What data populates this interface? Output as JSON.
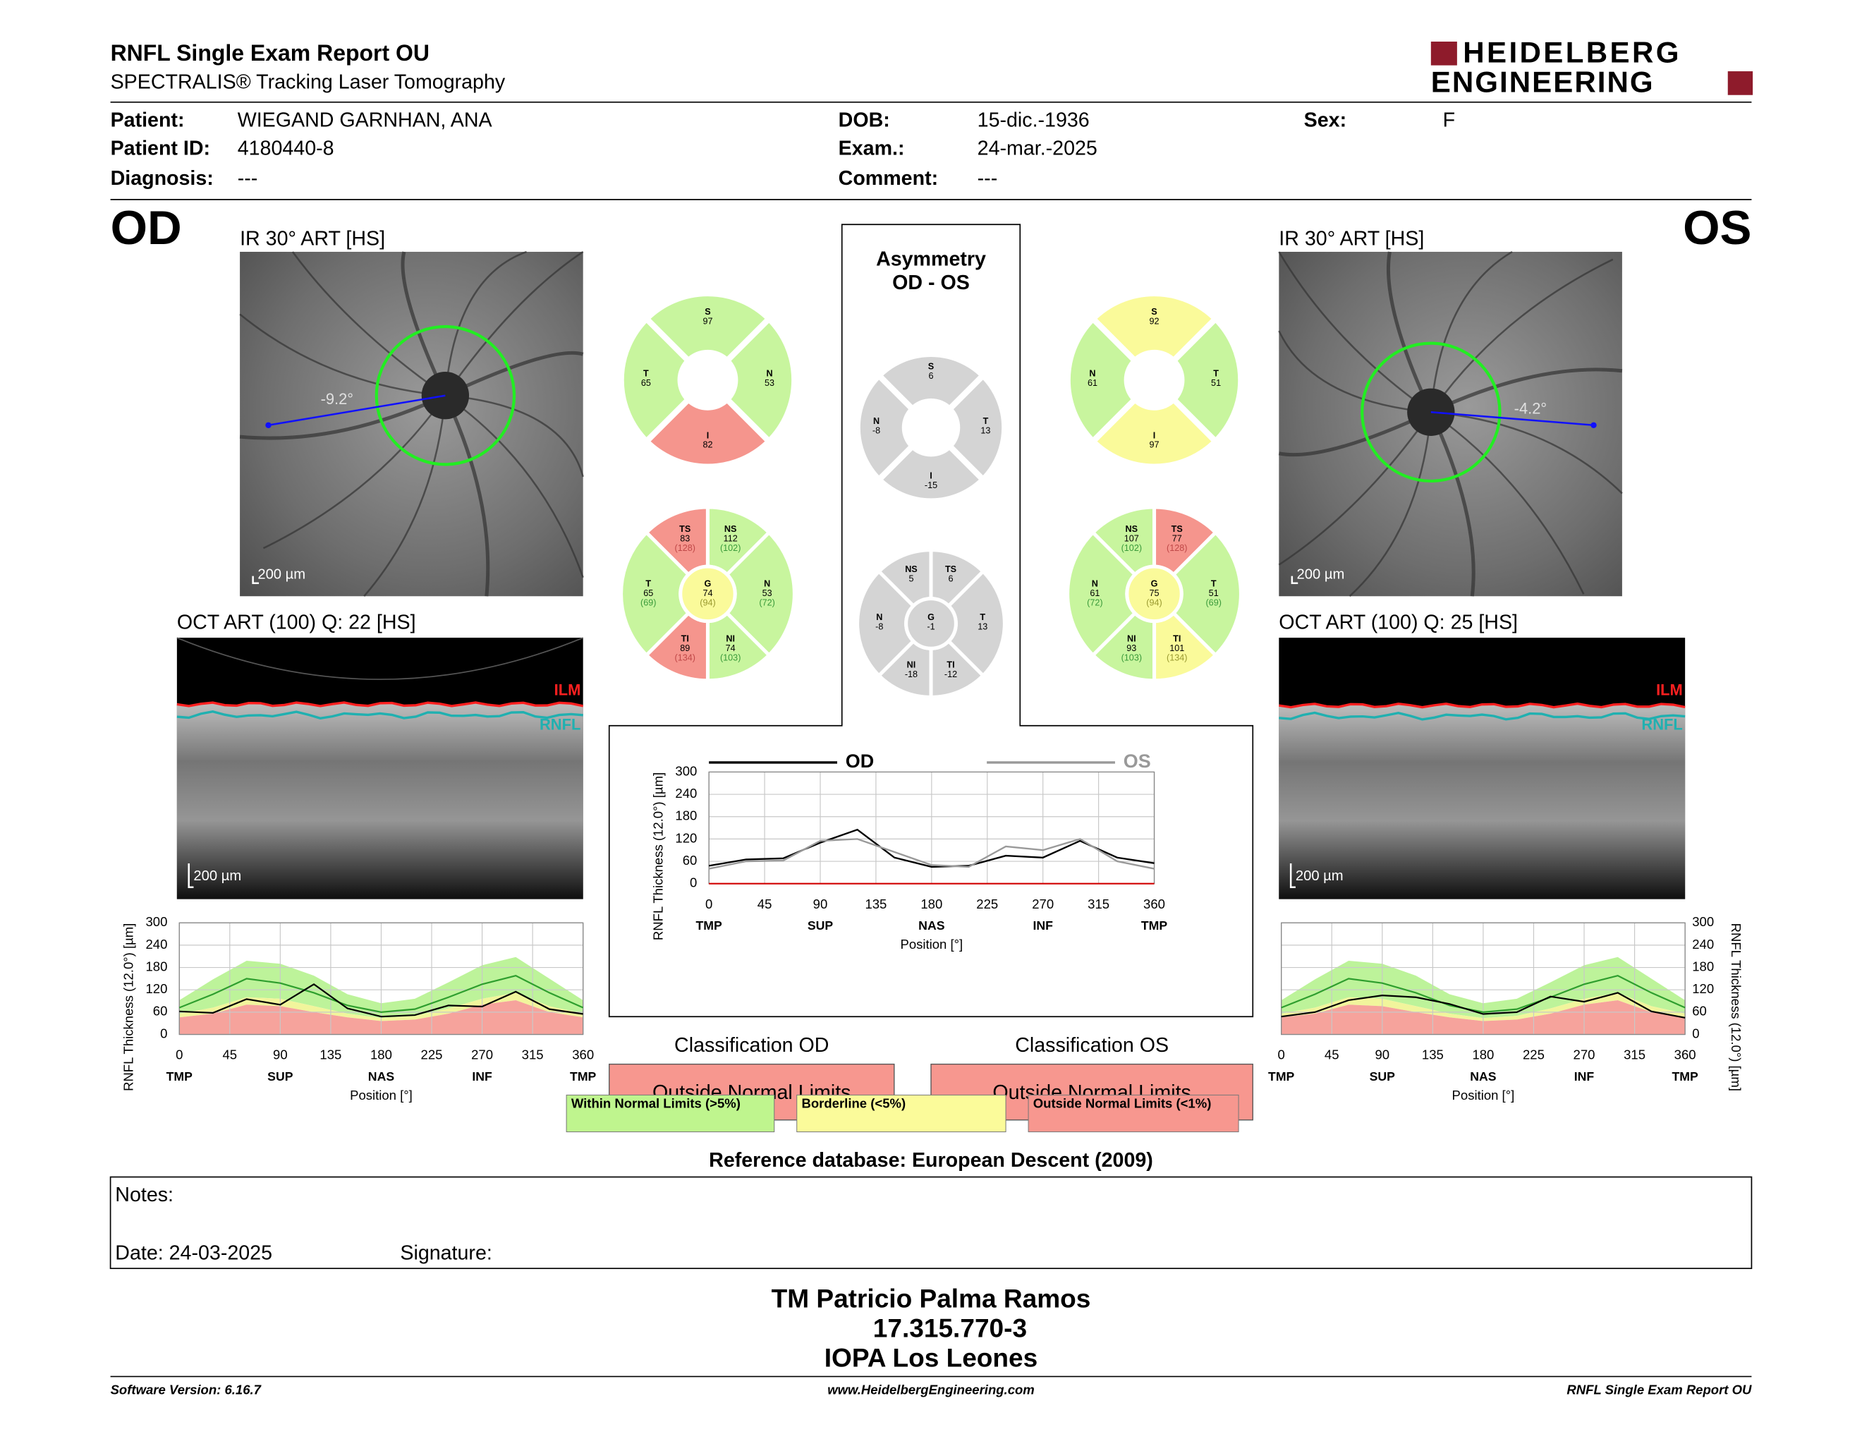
{
  "header": {
    "title": "RNFL Single Exam Report OU",
    "subtitle": "SPECTRALIS® Tracking Laser Tomography",
    "logo": [
      "HEIDELBERG",
      "ENGINEERING"
    ]
  },
  "patient": {
    "fields": [
      {
        "label": "Patient:",
        "value": "WIEGAND GARNHAN, ANA"
      },
      {
        "label": "Patient ID:",
        "value": "4180440-8"
      },
      {
        "label": "Diagnosis:",
        "value": "---"
      },
      {
        "label": "DOB:",
        "value": "15-dic.-1936"
      },
      {
        "label": "Exam.:",
        "value": "24-mar.-2025"
      },
      {
        "label": "Comment:",
        "value": "---"
      },
      {
        "label": "Sex:",
        "value": "F"
      }
    ]
  },
  "eyes": [
    {
      "eye": "OD",
      "ir_title": "IR 30° ART [HS]",
      "ir_angle": "-9.2°",
      "ir_scale": "200 µm",
      "oct_title": "OCT ART (100) Q: 22 [HS]",
      "oct_layers": [
        "ILM",
        "RNFL"
      ],
      "oct_scale": "200 µm",
      "quadrants": [
        {
          "label": "S",
          "value": 97,
          "color": "#c8f59e"
        },
        {
          "label": "N",
          "value": 53,
          "color": "#c8f59e"
        },
        {
          "label": "I",
          "value": 82,
          "color": "#f5958d"
        },
        {
          "label": "T",
          "value": 65,
          "color": "#c8f59e"
        }
      ],
      "sectors": [
        {
          "label": "TS",
          "value": 83,
          "norm": "(128)",
          "color": "#f5958d"
        },
        {
          "label": "NS",
          "value": 112,
          "norm": "(102)",
          "color": "#c8f59e"
        },
        {
          "label": "N",
          "value": 53,
          "norm": "(72)",
          "color": "#c8f59e"
        },
        {
          "label": "NI",
          "value": 74,
          "norm": "(103)",
          "color": "#c8f59e"
        },
        {
          "label": "TI",
          "value": 89,
          "norm": "(134)",
          "color": "#f5958d"
        },
        {
          "label": "T",
          "value": 65,
          "norm": "(69)",
          "color": "#c8f59e"
        },
        {
          "label": "G",
          "value": 74,
          "norm": "(94)",
          "color": "#fafa9a"
        }
      ],
      "classification_title": "Classification OD",
      "classification": "Outside Normal Limits",
      "classification_color": "#f7978f",
      "profile": {
        "type": "line",
        "x": [
          0,
          30,
          60,
          90,
          120,
          150,
          180,
          210,
          240,
          270,
          300,
          330,
          360
        ],
        "values": [
          62,
          58,
          95,
          80,
          135,
          70,
          48,
          52,
          78,
          75,
          115,
          68,
          55
        ],
        "color": "#000000",
        "mean": [
          72,
          108,
          150,
          138,
          112,
          78,
          60,
          68,
          100,
          135,
          158,
          112,
          72
        ],
        "mean_color": "#2e9e2e",
        "green_band_top": [
          92,
          148,
          198,
          190,
          158,
          108,
          84,
          96,
          140,
          186,
          208,
          150,
          92
        ],
        "yellow_band_top": [
          56,
          72,
          100,
          96,
          76,
          56,
          44,
          50,
          70,
          96,
          112,
          76,
          56
        ],
        "red_band_top": [
          46,
          56,
          80,
          76,
          60,
          46,
          36,
          40,
          56,
          80,
          92,
          60,
          46
        ],
        "band_colors": {
          "green": "#bdf39a",
          "yellow": "#f1f59c",
          "red": "#f6a39c"
        },
        "xlim": [
          0,
          360
        ],
        "xticks": [
          0,
          45,
          90,
          135,
          180,
          225,
          270,
          315,
          360
        ],
        "xcategories": [
          {
            "value": 0,
            "label": "TMP"
          },
          {
            "value": 90,
            "label": "SUP"
          },
          {
            "value": 180,
            "label": "NAS"
          },
          {
            "value": 270,
            "label": "INF"
          },
          {
            "value": 360,
            "label": "TMP"
          }
        ],
        "ylim": [
          0,
          300
        ],
        "yticks": [
          0,
          60,
          120,
          180,
          240,
          300
        ],
        "xlabel": "Position [°]",
        "ylabel": "RNFL Thickness (12.0°) [µm]",
        "grid": true
      }
    },
    {
      "eye": "OS",
      "ir_title": "IR 30° ART [HS]",
      "ir_angle": "-4.2°",
      "ir_scale": "200 µm",
      "oct_title": "OCT ART (100) Q: 25 [HS]",
      "oct_layers": [
        "ILM",
        "RNFL"
      ],
      "oct_scale": "200 µm",
      "quadrants": [
        {
          "label": "S",
          "value": 92,
          "color": "#fafa9a"
        },
        {
          "label": "T",
          "value": 51,
          "color": "#c8f59e"
        },
        {
          "label": "I",
          "value": 97,
          "color": "#fafa9a"
        },
        {
          "label": "N",
          "value": 61,
          "color": "#c8f59e"
        }
      ],
      "sectors": [
        {
          "label": "NS",
          "value": 107,
          "norm": "(102)",
          "color": "#c8f59e"
        },
        {
          "label": "TS",
          "value": 77,
          "norm": "(128)",
          "color": "#f5958d"
        },
        {
          "label": "T",
          "value": 51,
          "norm": "(69)",
          "color": "#c8f59e"
        },
        {
          "label": "TI",
          "value": 101,
          "norm": "(134)",
          "color": "#fafa9a"
        },
        {
          "label": "NI",
          "value": 93,
          "norm": "(103)",
          "color": "#c8f59e"
        },
        {
          "label": "N",
          "value": 61,
          "norm": "(72)",
          "color": "#c8f59e"
        },
        {
          "label": "G",
          "value": 75,
          "norm": "(94)",
          "color": "#fafa9a"
        }
      ],
      "classification_title": "Classification OS",
      "classification": "Outside Normal Limits",
      "classification_color": "#f7978f",
      "profile": {
        "type": "line",
        "x": [
          0,
          30,
          60,
          90,
          120,
          150,
          180,
          210,
          240,
          270,
          300,
          330,
          360
        ],
        "values": [
          48,
          60,
          92,
          105,
          100,
          82,
          55,
          60,
          102,
          88,
          112,
          62,
          45
        ],
        "color": "#000000",
        "mean": [
          72,
          108,
          150,
          138,
          112,
          78,
          60,
          68,
          100,
          135,
          158,
          112,
          72
        ],
        "mean_color": "#2e9e2e",
        "green_band_top": [
          92,
          148,
          198,
          190,
          158,
          108,
          84,
          96,
          140,
          186,
          208,
          150,
          92
        ],
        "yellow_band_top": [
          56,
          72,
          100,
          96,
          76,
          56,
          44,
          50,
          70,
          96,
          112,
          76,
          56
        ],
        "red_band_top": [
          46,
          56,
          80,
          76,
          60,
          46,
          36,
          40,
          56,
          80,
          92,
          60,
          46
        ],
        "band_colors": {
          "green": "#bdf39a",
          "yellow": "#f1f59c",
          "red": "#f6a39c"
        },
        "xlim": [
          0,
          360
        ],
        "xticks": [
          0,
          45,
          90,
          135,
          180,
          225,
          270,
          315,
          360
        ],
        "xcategories": [
          {
            "value": 0,
            "label": "TMP"
          },
          {
            "value": 90,
            "label": "SUP"
          },
          {
            "value": 180,
            "label": "NAS"
          },
          {
            "value": 270,
            "label": "INF"
          },
          {
            "value": 360,
            "label": "TMP"
          }
        ],
        "ylim": [
          0,
          300
        ],
        "yticks": [
          0,
          60,
          120,
          180,
          240,
          300
        ],
        "xlabel": "Position [°]",
        "ylabel": "RNFL Thickness (12.0°) [µm]",
        "grid": true
      }
    }
  ],
  "asymmetry": {
    "title": [
      "Asymmetry",
      "OD - OS"
    ],
    "color": "#d4d4d4",
    "quadrants": [
      {
        "label": "S",
        "value": 6
      },
      {
        "label": "T",
        "value": 13
      },
      {
        "label": "I",
        "value": -15
      },
      {
        "label": "N",
        "value": -8
      }
    ],
    "sectors": [
      {
        "label": "NS",
        "value": 5
      },
      {
        "label": "TS",
        "value": 6
      },
      {
        "label": "T",
        "value": 13
      },
      {
        "label": "TI",
        "value": -12
      },
      {
        "label": "NI",
        "value": -18
      },
      {
        "label": "N",
        "value": -8
      },
      {
        "label": "G",
        "value": -1
      }
    ]
  },
  "comparison": {
    "type": "line",
    "x": [
      0,
      30,
      60,
      90,
      120,
      150,
      180,
      210,
      240,
      270,
      300,
      330,
      360
    ],
    "series": [
      {
        "name": "OD",
        "color": "#000000",
        "values": [
          48,
          65,
          68,
          110,
          145,
          70,
          45,
          48,
          75,
          70,
          115,
          70,
          55
        ]
      },
      {
        "name": "OS",
        "color": "#999999",
        "values": [
          40,
          60,
          62,
          115,
          120,
          85,
          50,
          45,
          100,
          90,
          120,
          60,
          40
        ]
      }
    ],
    "xlim": [
      0,
      360
    ],
    "xticks": [
      0,
      45,
      90,
      135,
      180,
      225,
      270,
      315,
      360
    ],
    "xcategories": [
      {
        "value": 0,
        "label": "TMP"
      },
      {
        "value": 90,
        "label": "SUP"
      },
      {
        "value": 180,
        "label": "NAS"
      },
      {
        "value": 270,
        "label": "INF"
      },
      {
        "value": 360,
        "label": "TMP"
      }
    ],
    "ylim": [
      0,
      300
    ],
    "yticks": [
      0,
      60,
      120,
      180,
      240,
      300
    ],
    "xlabel": "Position [°]",
    "ylabel": "RNFL Thickness (12.0°) [µm]",
    "grid": true
  },
  "legend": [
    {
      "label": "Within Normal Limits (>5%)",
      "color": "#bff58e"
    },
    {
      "label": "Borderline (<5%)",
      "color": "#fbfb9a"
    },
    {
      "label": "Outside Normal Limits (<1%)",
      "color": "#f7978f"
    }
  ],
  "reference": "Reference database: European Descent (2009)",
  "notes": {
    "label": "Notes:",
    "date": "Date: 24-03-2025",
    "signature": "Signature:"
  },
  "signature_block": [
    "TM Patricio Palma Ramos",
    "17.315.770-3",
    "IOPA Los Leones"
  ],
  "footer": {
    "left": "Software Version: 6.16.7",
    "center": "www.HeidelbergEngineering.com",
    "right": "RNFL Single Exam Report OU"
  }
}
